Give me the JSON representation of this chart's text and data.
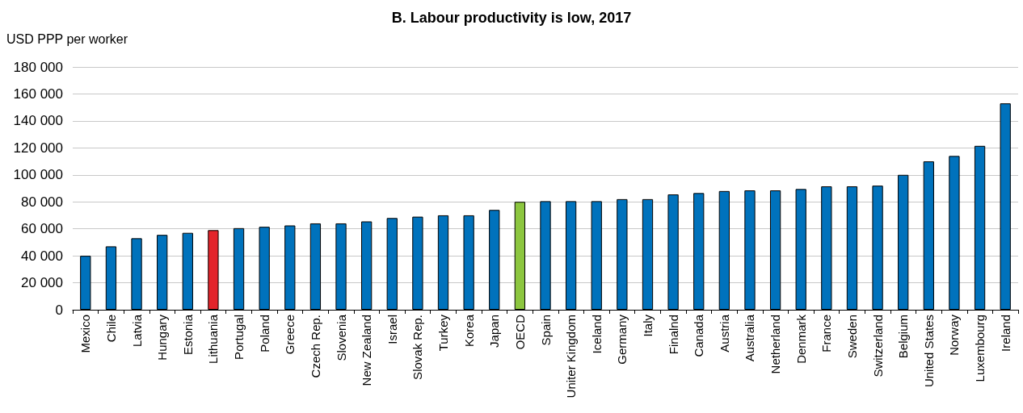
{
  "chart_data": {
    "type": "bar",
    "title": "B. Labour productivity is low, 2017",
    "ylabel": "USD PPP per worker",
    "categories": [
      "Mexico",
      "Chile",
      "Latvia",
      "Hungary",
      "Estonia",
      "Lithuania",
      "Portugal",
      "Poland",
      "Greece",
      "Czech Rep.",
      "Slovenia",
      "New Zealand",
      "Israel",
      "Slovak Rep.",
      "Turkey",
      "Korea",
      "Japan",
      "OECD",
      "Spain",
      "Uniter Kingdom",
      "Iceland",
      "Germany",
      "Italy",
      "Finalnd",
      "Canada",
      "Austria",
      "Australia",
      "Netherland",
      "Denmark",
      "France",
      "Sweden",
      "Switzerland",
      "Belgium",
      "United States",
      "Norway",
      "Luxembourg",
      "Ireland"
    ],
    "values": [
      40000,
      47000,
      53000,
      55500,
      57000,
      59000,
      60500,
      61500,
      62500,
      64000,
      64000,
      65500,
      68000,
      69000,
      70000,
      70000,
      74000,
      80000,
      80500,
      80500,
      80500,
      82000,
      82000,
      85500,
      86500,
      88000,
      88500,
      88500,
      89500,
      91500,
      91500,
      92000,
      100000,
      110000,
      114000,
      121500,
      153000
    ],
    "colors": [
      "#0072bc",
      "#0072bc",
      "#0072bc",
      "#0072bc",
      "#0072bc",
      "#e3242b",
      "#0072bc",
      "#0072bc",
      "#0072bc",
      "#0072bc",
      "#0072bc",
      "#0072bc",
      "#0072bc",
      "#0072bc",
      "#0072bc",
      "#0072bc",
      "#0072bc",
      "#8cc63f",
      "#0072bc",
      "#0072bc",
      "#0072bc",
      "#0072bc",
      "#0072bc",
      "#0072bc",
      "#0072bc",
      "#0072bc",
      "#0072bc",
      "#0072bc",
      "#0072bc",
      "#0072bc",
      "#0072bc",
      "#0072bc",
      "#0072bc",
      "#0072bc",
      "#0072bc",
      "#0072bc",
      "#0072bc"
    ],
    "ylim": [
      0,
      180000
    ],
    "yticks": [
      0,
      {
        "value": 20000,
        "label": "20 000"
      },
      {
        "value": 40000,
        "label": "40 000"
      },
      {
        "value": 60000,
        "label": "60 000"
      },
      {
        "value": 80000,
        "label": "80 000"
      },
      {
        "value": 100000,
        "label": "100 000"
      },
      {
        "value": 120000,
        "label": "120 000"
      },
      {
        "value": 140000,
        "label": "140 000"
      },
      {
        "value": 160000,
        "label": "160 000"
      },
      {
        "value": 180000,
        "label": "180 000"
      }
    ],
    "grid": "y"
  }
}
